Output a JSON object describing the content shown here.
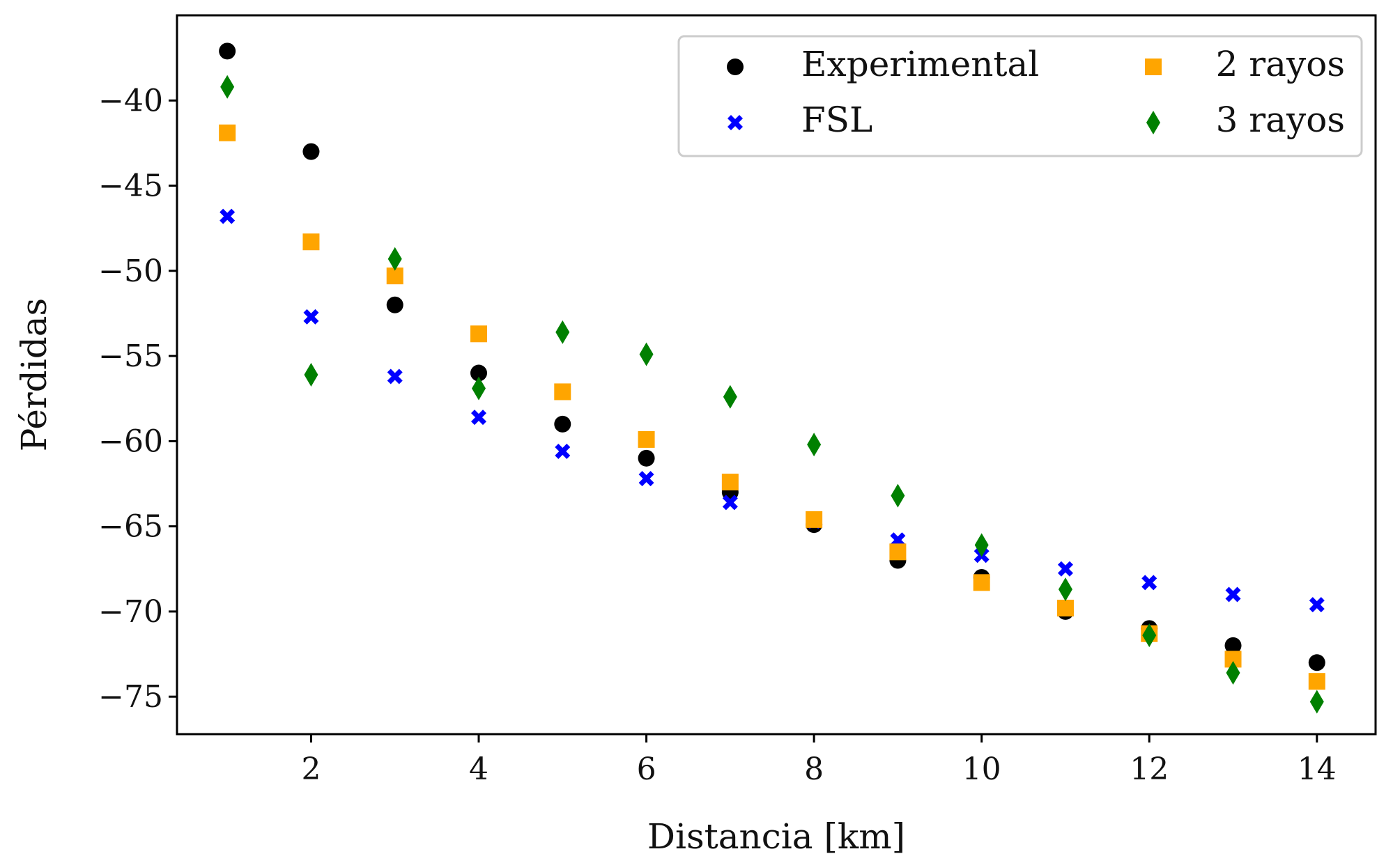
{
  "chart_data": {
    "type": "scatter",
    "title": "",
    "xlabel": "Distancia [km]",
    "ylabel": "Pérdidas",
    "xlim": [
      0.4,
      14.7
    ],
    "ylim": [
      -77.2,
      -35.0
    ],
    "xticks": [
      2,
      4,
      6,
      8,
      10,
      12,
      14
    ],
    "xtick_labels": [
      "2",
      "4",
      "6",
      "8",
      "10",
      "12",
      "14"
    ],
    "yticks": [
      -40,
      -45,
      -50,
      -55,
      -60,
      -65,
      -70,
      -75
    ],
    "ytick_labels": [
      "−40",
      "−45",
      "−50",
      "−55",
      "−60",
      "−65",
      "−70",
      "−75"
    ],
    "grid": false,
    "legend_position": "top-right",
    "series": [
      {
        "name": "Experimental",
        "marker": "circle",
        "color": "#000000",
        "x": [
          1,
          2,
          3,
          4,
          5,
          6,
          7,
          8,
          9,
          10,
          11,
          12,
          13,
          14
        ],
        "y": [
          -37.1,
          -43.0,
          -52.0,
          -56.0,
          -59.0,
          -61.0,
          -63.0,
          -64.9,
          -67.0,
          -68.0,
          -70.0,
          -71.0,
          -72.0,
          -73.0
        ]
      },
      {
        "name": "FSL",
        "marker": "x-filled",
        "color": "#0000ff",
        "x": [
          1,
          2,
          3,
          4,
          5,
          6,
          7,
          8,
          9,
          10,
          11,
          12,
          13,
          14
        ],
        "y": [
          -46.8,
          -52.7,
          -56.2,
          -58.6,
          -60.6,
          -62.2,
          -63.6,
          -64.7,
          -65.8,
          -66.7,
          -67.5,
          -68.3,
          -69.0,
          -69.6
        ]
      },
      {
        "name": "2 rayos",
        "marker": "square",
        "color": "#ffa500",
        "x": [
          1,
          2,
          3,
          4,
          5,
          6,
          7,
          8,
          9,
          10,
          11,
          12,
          13,
          14
        ],
        "y": [
          -41.9,
          -48.3,
          -50.3,
          -53.7,
          -57.1,
          -59.9,
          -62.4,
          -64.6,
          -66.5,
          -68.3,
          -69.8,
          -71.3,
          -72.8,
          -74.1
        ]
      },
      {
        "name": "3 rayos",
        "marker": "diamond",
        "color": "#008000",
        "x": [
          1,
          2,
          3,
          4,
          5,
          6,
          7,
          8,
          9,
          10,
          11,
          12,
          13,
          14
        ],
        "y": [
          -39.2,
          -56.1,
          -49.3,
          -56.9,
          -53.6,
          -54.9,
          -57.4,
          -60.2,
          -63.2,
          -66.1,
          -68.7,
          -71.4,
          -73.6,
          -75.3
        ]
      }
    ]
  }
}
